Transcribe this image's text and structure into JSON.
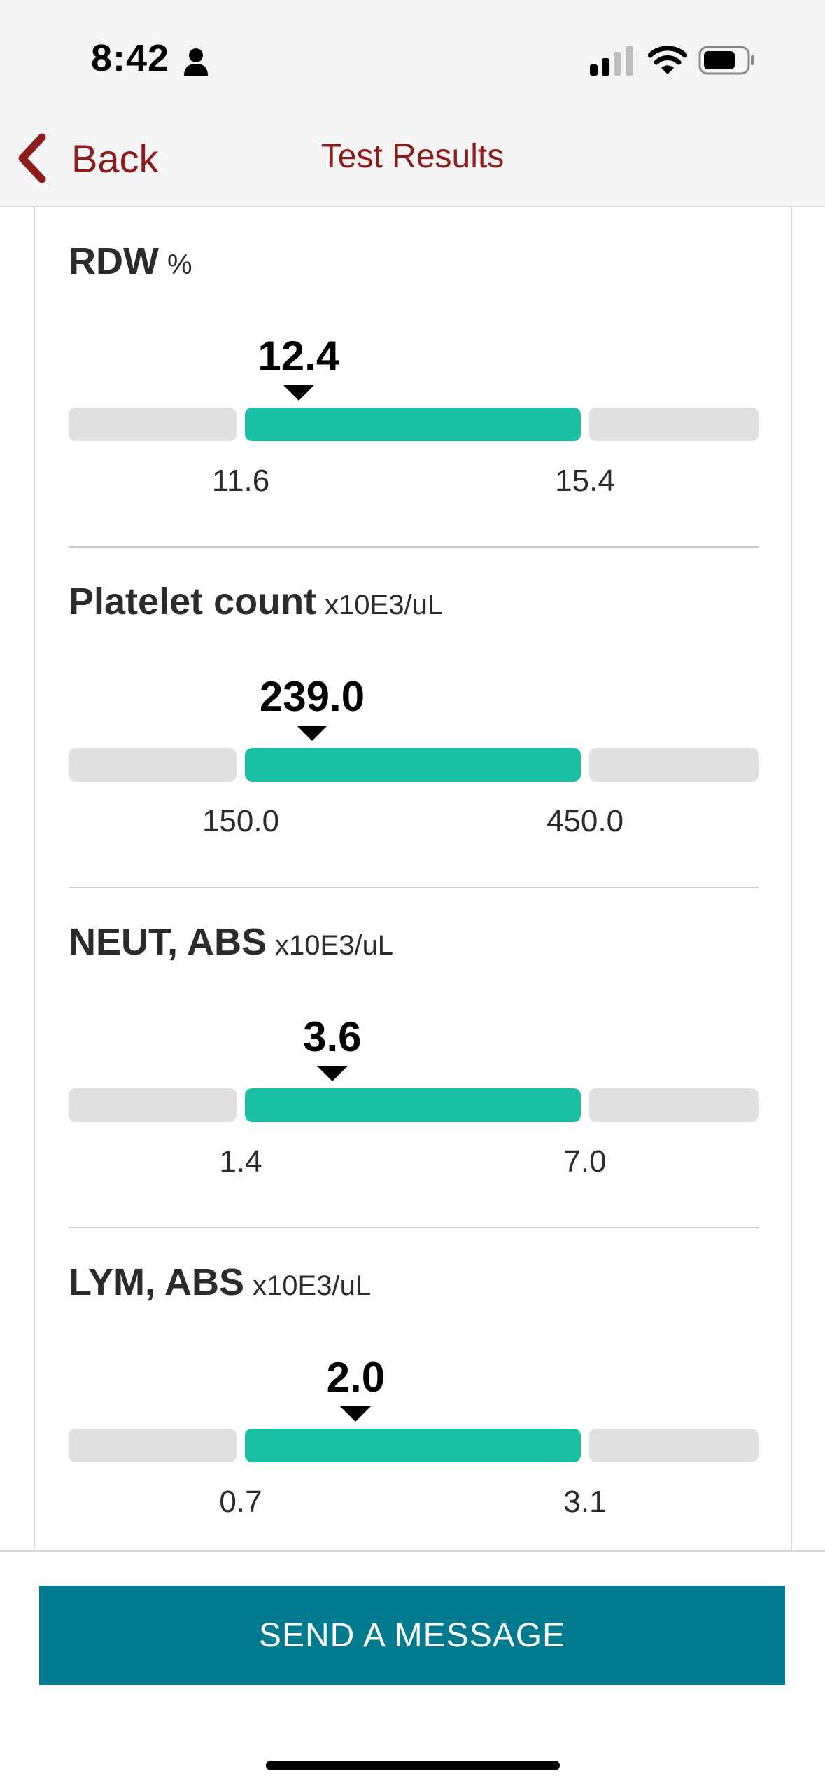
{
  "status_bar": {
    "time": "8:42",
    "icons": [
      "person-icon",
      "cellular-signal-icon",
      "wifi-icon",
      "battery-icon"
    ]
  },
  "nav": {
    "back_label": "Back",
    "title": "Test Results"
  },
  "colors": {
    "accent": "#8c1c1c",
    "normal_range": "#1bbfa3",
    "out_of_range": "#e0e0e0",
    "button": "#007a8f"
  },
  "results": [
    {
      "name": "RDW",
      "unit": "%",
      "value": "12.4",
      "low": "11.6",
      "high": "15.4",
      "position": 0.16
    },
    {
      "name": "Platelet count",
      "unit": "x10E3/uL",
      "value": "239.0",
      "low": "150.0",
      "high": "450.0",
      "position": 0.2
    },
    {
      "name": "NEUT, ABS",
      "unit": "x10E3/uL",
      "value": "3.6",
      "low": "1.4",
      "high": "7.0",
      "position": 0.26
    },
    {
      "name": "LYM, ABS",
      "unit": "x10E3/uL",
      "value": "2.0",
      "low": "0.7",
      "high": "3.1",
      "position": 0.33
    }
  ],
  "actions": {
    "send_message_label": "SEND A MESSAGE"
  }
}
